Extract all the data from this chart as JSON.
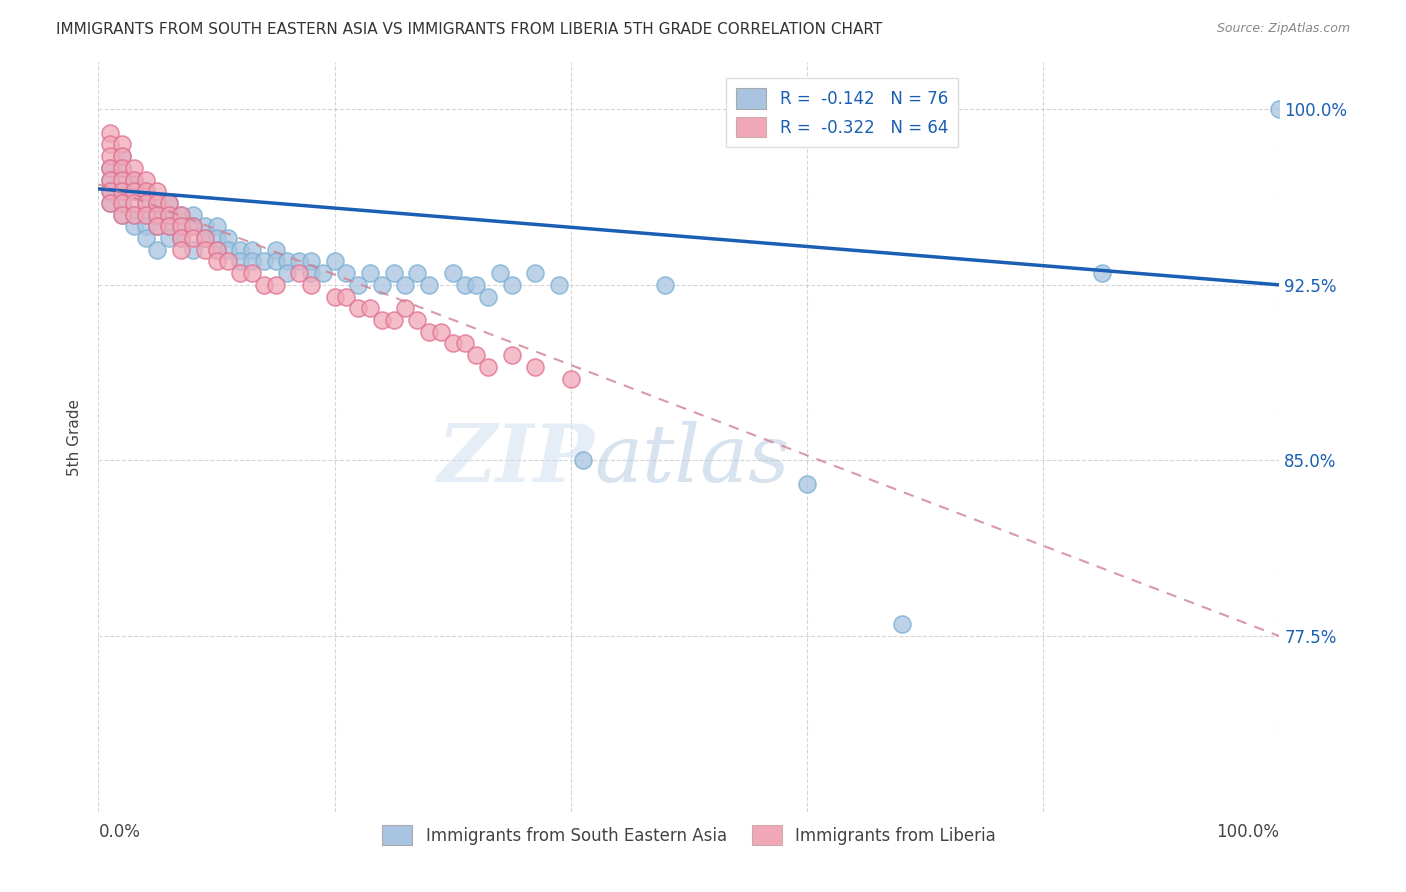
{
  "title": "IMMIGRANTS FROM SOUTH EASTERN ASIA VS IMMIGRANTS FROM LIBERIA 5TH GRADE CORRELATION CHART",
  "source": "Source: ZipAtlas.com",
  "ylabel": "5th Grade",
  "yticks": [
    77.5,
    85.0,
    92.5,
    100.0
  ],
  "ytick_labels": [
    "77.5%",
    "85.0%",
    "92.5%",
    "100.0%"
  ],
  "xlim": [
    0.0,
    100.0
  ],
  "ylim": [
    70.0,
    102.0
  ],
  "legend_r1": "R =  -0.142   N = 76",
  "legend_r2": "R =  -0.322   N = 64",
  "blue_color": "#a8c4e0",
  "blue_edge_color": "#7aafd4",
  "pink_color": "#f0a8b8",
  "pink_edge_color": "#e07090",
  "blue_line_color": "#1a5fb4",
  "pink_line_color": "#d08090",
  "watermark_zip": "ZIP",
  "watermark_atlas": "atlas",
  "grid_color": "#cccccc",
  "background_color": "#ffffff",
  "blue_scatter_x": [
    1,
    1,
    1,
    1,
    2,
    2,
    2,
    2,
    2,
    2,
    3,
    3,
    3,
    3,
    4,
    4,
    4,
    4,
    4,
    5,
    5,
    5,
    5,
    6,
    6,
    6,
    6,
    7,
    7,
    7,
    8,
    8,
    8,
    9,
    9,
    10,
    10,
    10,
    11,
    11,
    12,
    12,
    13,
    13,
    14,
    15,
    15,
    16,
    16,
    17,
    18,
    18,
    19,
    20,
    21,
    22,
    23,
    24,
    25,
    26,
    27,
    28,
    30,
    31,
    32,
    33,
    34,
    35,
    37,
    39,
    41,
    48,
    60,
    68,
    85,
    100
  ],
  "blue_scatter_y": [
    97.5,
    97.0,
    96.5,
    96.0,
    98.0,
    97.5,
    97.0,
    96.5,
    96.0,
    95.5,
    97.0,
    96.5,
    95.5,
    95.0,
    96.5,
    96.0,
    95.5,
    95.0,
    94.5,
    96.0,
    95.5,
    95.0,
    94.0,
    96.0,
    95.5,
    95.0,
    94.5,
    95.5,
    95.0,
    94.5,
    95.5,
    95.0,
    94.0,
    95.0,
    94.5,
    95.0,
    94.5,
    94.0,
    94.5,
    94.0,
    94.0,
    93.5,
    94.0,
    93.5,
    93.5,
    94.0,
    93.5,
    93.5,
    93.0,
    93.5,
    93.5,
    93.0,
    93.0,
    93.5,
    93.0,
    92.5,
    93.0,
    92.5,
    93.0,
    92.5,
    93.0,
    92.5,
    93.0,
    92.5,
    92.5,
    92.0,
    93.0,
    92.5,
    93.0,
    92.5,
    85.0,
    92.5,
    84.0,
    78.0,
    93.0,
    100.0
  ],
  "pink_scatter_x": [
    1,
    1,
    1,
    1,
    1,
    1,
    1,
    2,
    2,
    2,
    2,
    2,
    2,
    2,
    3,
    3,
    3,
    3,
    3,
    4,
    4,
    4,
    4,
    5,
    5,
    5,
    5,
    6,
    6,
    6,
    7,
    7,
    7,
    7,
    8,
    8,
    9,
    9,
    10,
    10,
    11,
    12,
    13,
    14,
    15,
    17,
    18,
    20,
    21,
    22,
    23,
    24,
    25,
    26,
    27,
    28,
    29,
    30,
    31,
    32,
    33,
    35,
    37,
    40
  ],
  "pink_scatter_y": [
    99.0,
    98.5,
    98.0,
    97.5,
    97.0,
    96.5,
    96.0,
    98.5,
    98.0,
    97.5,
    97.0,
    96.5,
    96.0,
    95.5,
    97.5,
    97.0,
    96.5,
    96.0,
    95.5,
    97.0,
    96.5,
    96.0,
    95.5,
    96.5,
    96.0,
    95.5,
    95.0,
    96.0,
    95.5,
    95.0,
    95.5,
    95.0,
    94.5,
    94.0,
    95.0,
    94.5,
    94.5,
    94.0,
    94.0,
    93.5,
    93.5,
    93.0,
    93.0,
    92.5,
    92.5,
    93.0,
    92.5,
    92.0,
    92.0,
    91.5,
    91.5,
    91.0,
    91.0,
    91.5,
    91.0,
    90.5,
    90.5,
    90.0,
    90.0,
    89.5,
    89.0,
    89.5,
    89.0,
    88.5
  ],
  "blue_trendline_x": [
    0.0,
    100.0
  ],
  "blue_trendline_y": [
    96.6,
    92.5
  ],
  "pink_trendline_x": [
    0.0,
    100.0
  ],
  "pink_trendline_y": [
    96.8,
    77.5
  ]
}
